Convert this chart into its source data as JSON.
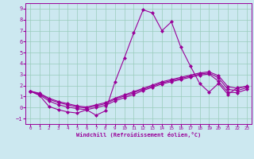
{
  "xlabel": "Windchill (Refroidissement éolien,°C)",
  "xlim": [
    -0.5,
    23.5
  ],
  "ylim": [
    -1.5,
    9.5
  ],
  "yticks": [
    -1,
    0,
    1,
    2,
    3,
    4,
    5,
    6,
    7,
    8,
    9
  ],
  "xticks": [
    0,
    1,
    2,
    3,
    4,
    5,
    6,
    7,
    8,
    9,
    10,
    11,
    12,
    13,
    14,
    15,
    16,
    17,
    18,
    19,
    20,
    21,
    22,
    23
  ],
  "background_color": "#cce8f0",
  "grid_color": "#99ccbb",
  "line_color": "#990099",
  "series": [
    [
      1.5,
      1.1,
      0.1,
      -0.2,
      -0.4,
      -0.5,
      -0.2,
      -0.7,
      -0.3,
      2.3,
      4.5,
      6.8,
      8.9,
      8.6,
      7.0,
      7.8,
      5.5,
      3.8,
      2.2,
      1.4,
      2.2,
      1.2,
      1.8,
      1.9
    ],
    [
      1.5,
      1.3,
      0.85,
      0.55,
      0.35,
      0.15,
      0.05,
      0.25,
      0.45,
      0.85,
      1.15,
      1.45,
      1.75,
      2.05,
      2.35,
      2.55,
      2.75,
      2.95,
      3.15,
      3.25,
      2.9,
      1.9,
      1.75,
      1.95
    ],
    [
      1.5,
      1.25,
      0.75,
      0.45,
      0.25,
      0.05,
      -0.05,
      0.15,
      0.35,
      0.75,
      1.05,
      1.35,
      1.65,
      1.95,
      2.25,
      2.45,
      2.65,
      2.85,
      3.05,
      3.15,
      2.7,
      1.65,
      1.55,
      1.8
    ],
    [
      1.5,
      1.15,
      0.6,
      0.25,
      0.05,
      -0.1,
      -0.2,
      0.0,
      0.2,
      0.6,
      0.9,
      1.2,
      1.55,
      1.85,
      2.15,
      2.35,
      2.55,
      2.75,
      2.95,
      3.05,
      2.4,
      1.4,
      1.35,
      1.65
    ]
  ],
  "marker": "D",
  "markersize": 2.0,
  "linewidth": 0.8
}
